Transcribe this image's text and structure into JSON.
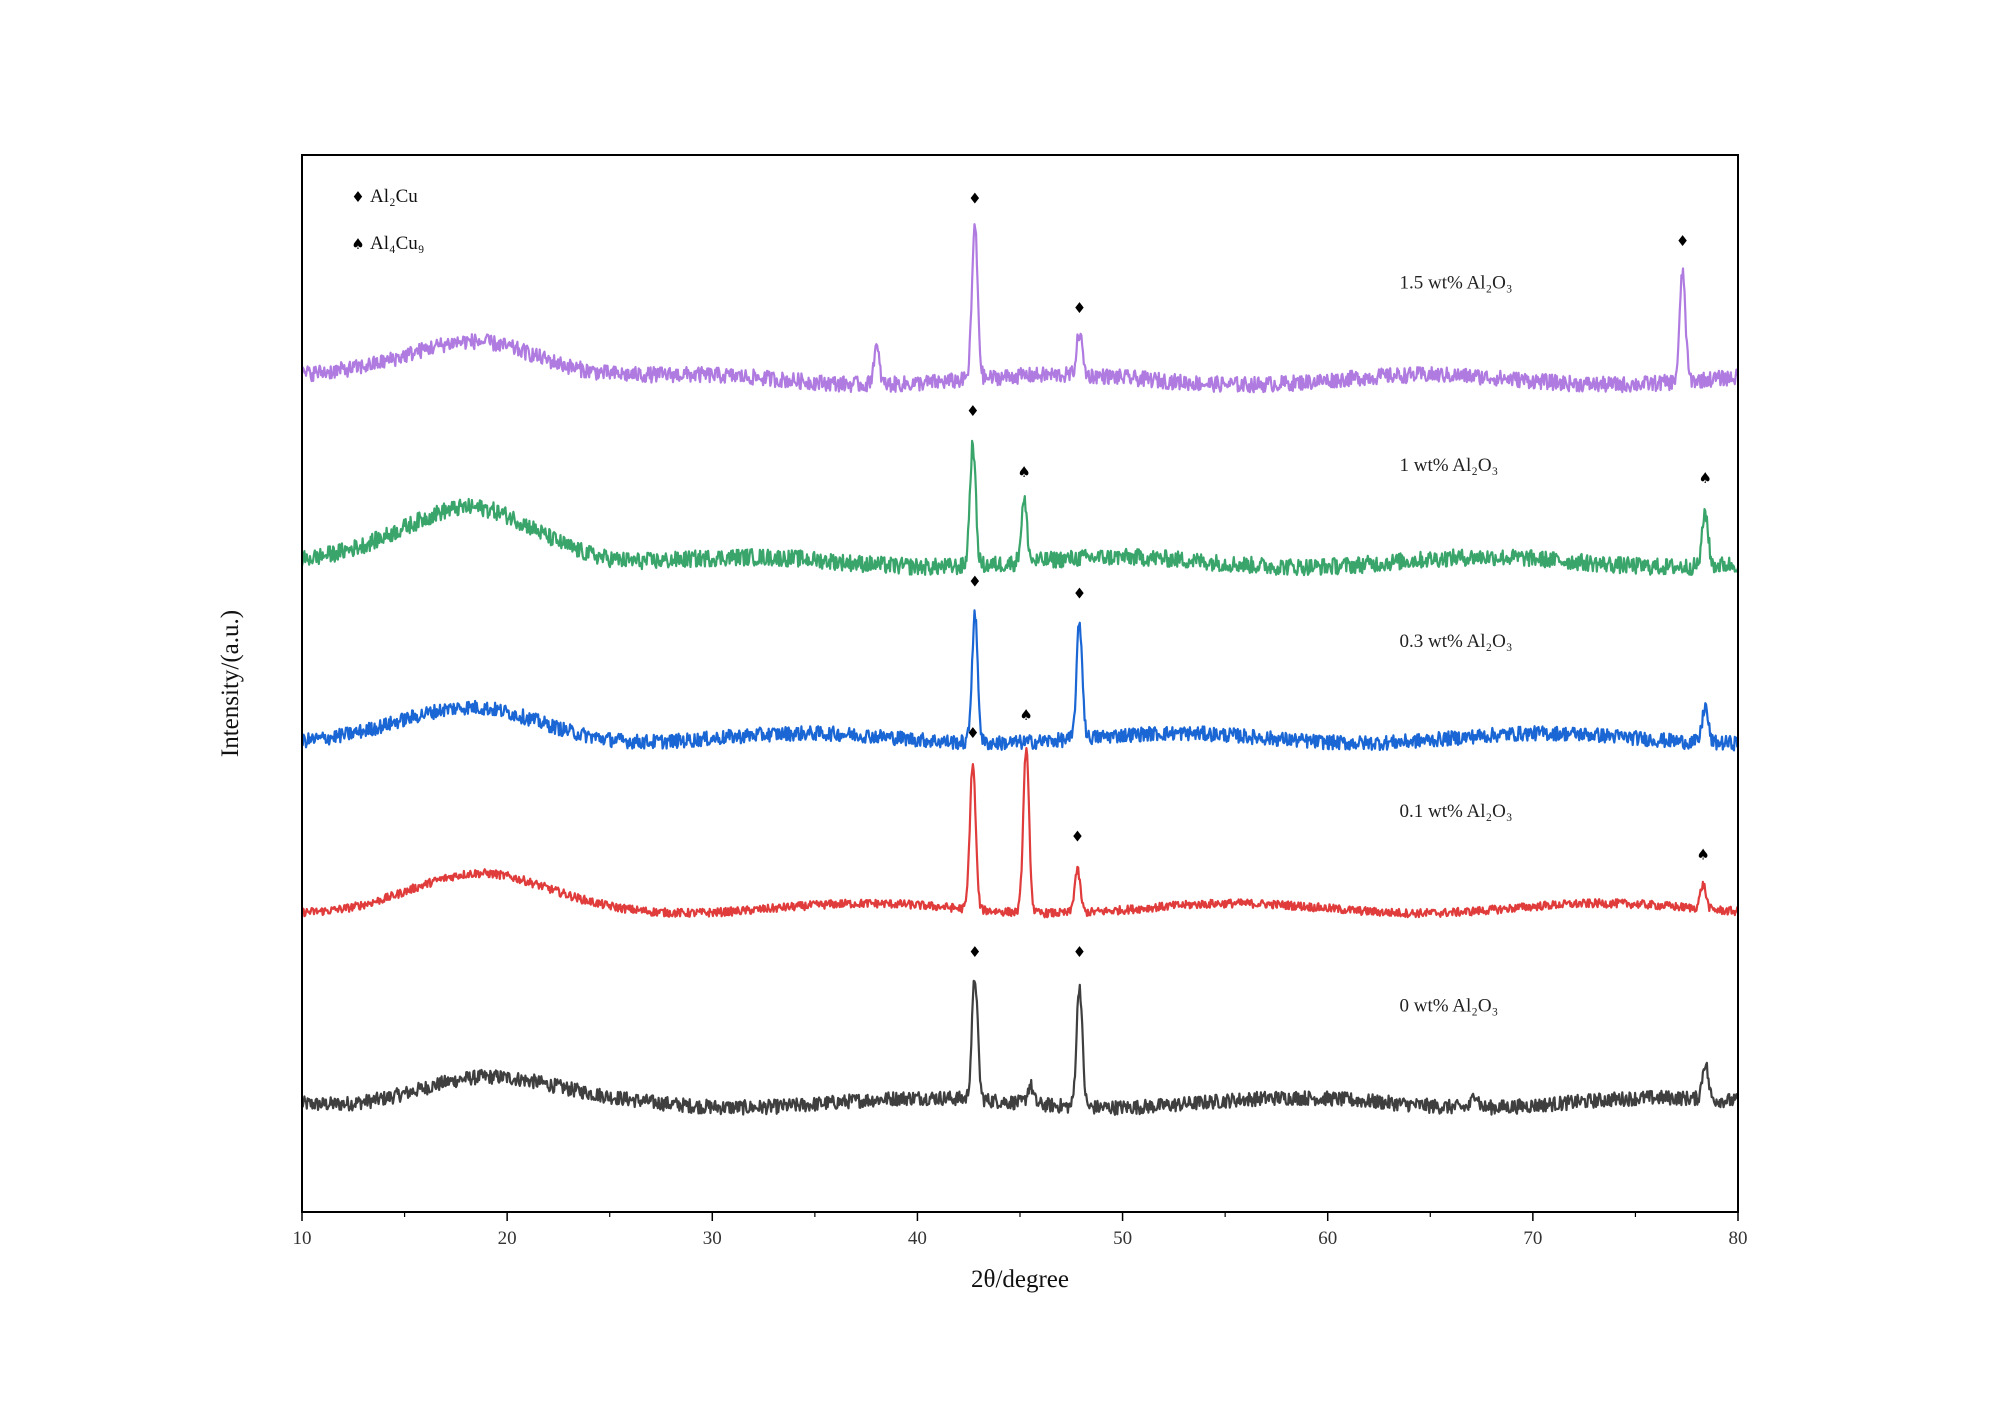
{
  "chart_data": {
    "type": "line",
    "xlabel": "2θ/degree",
    "ylabel": "Intensity/(a.u.)",
    "xlim": [
      10,
      80
    ],
    "x_ticks": [
      10,
      20,
      30,
      40,
      50,
      60,
      70,
      80
    ],
    "y_ticks_shown": false,
    "grid": false,
    "legend": {
      "placement": "top-left",
      "entries": [
        {
          "symbol": "♦",
          "label": "Al₂Cu"
        },
        {
          "symbol": "♠",
          "label": "Al₄Cu₉"
        }
      ]
    },
    "series": [
      {
        "name": "0 wt% Al₂O₃",
        "color": "#3f3f3f",
        "baseline": 0.0,
        "noise": 0.06,
        "hump": 0.2,
        "peaks": [
          {
            "x": 42.8,
            "height": 1.0
          },
          {
            "x": 47.9,
            "height": 1.0
          },
          {
            "x": 45.5,
            "height": 0.15
          },
          {
            "x": 78.4,
            "height": 0.3
          },
          {
            "x": 67.2,
            "height": 0.12
          }
        ],
        "markers": [
          {
            "x": 42.8,
            "symbol": "♦"
          },
          {
            "x": 47.9,
            "symbol": "♦"
          }
        ]
      },
      {
        "name": "0.1 wt% Al₂O₃",
        "color": "#e03c3c",
        "baseline": 1.6,
        "noise": 0.035,
        "hump": 0.25,
        "peaks": [
          {
            "x": 42.7,
            "height": 1.2
          },
          {
            "x": 45.3,
            "height": 1.35
          },
          {
            "x": 47.8,
            "height": 0.35
          },
          {
            "x": 78.3,
            "height": 0.2
          }
        ],
        "markers": [
          {
            "x": 42.7,
            "symbol": "♦"
          },
          {
            "x": 45.3,
            "symbol": "♠"
          },
          {
            "x": 47.8,
            "symbol": "♦"
          },
          {
            "x": 78.3,
            "symbol": "♠"
          }
        ]
      },
      {
        "name": "0.3 wt% Al₂O₃",
        "color": "#1a66d4",
        "baseline": 3.0,
        "noise": 0.06,
        "hump": 0.22,
        "peaks": [
          {
            "x": 42.8,
            "height": 1.05
          },
          {
            "x": 47.9,
            "height": 0.95
          },
          {
            "x": 78.4,
            "height": 0.3
          }
        ],
        "markers": [
          {
            "x": 42.8,
            "symbol": "♦"
          },
          {
            "x": 47.9,
            "symbol": "♦"
          }
        ]
      },
      {
        "name": "1 wt% Al₂O₃",
        "color": "#3aa56b",
        "baseline": 4.45,
        "noise": 0.07,
        "hump": 0.45,
        "peaks": [
          {
            "x": 42.7,
            "height": 1.0
          },
          {
            "x": 45.2,
            "height": 0.5
          },
          {
            "x": 78.4,
            "height": 0.45
          }
        ],
        "markers": [
          {
            "x": 42.7,
            "symbol": "♦"
          },
          {
            "x": 45.2,
            "symbol": "♠"
          },
          {
            "x": 78.4,
            "symbol": "♠"
          }
        ]
      },
      {
        "name": "1.5 wt% Al₂O₃",
        "color": "#b07be0",
        "baseline": 5.95,
        "noise": 0.065,
        "hump": 0.35,
        "peaks": [
          {
            "x": 42.8,
            "height": 1.25
          },
          {
            "x": 47.9,
            "height": 0.35
          },
          {
            "x": 77.3,
            "height": 0.9
          },
          {
            "x": 38.0,
            "height": 0.3
          }
        ],
        "markers": [
          {
            "x": 42.8,
            "symbol": "♦"
          },
          {
            "x": 47.9,
            "symbol": "♦"
          },
          {
            "x": 77.3,
            "symbol": "♦"
          }
        ]
      }
    ]
  }
}
